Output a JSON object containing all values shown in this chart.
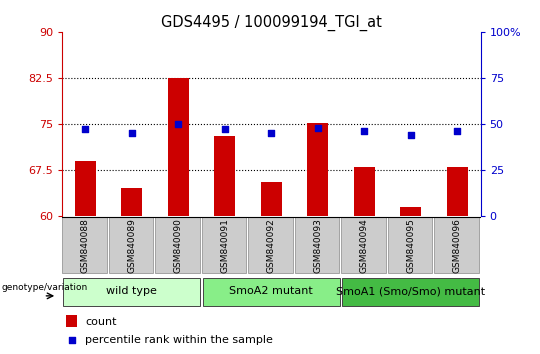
{
  "title": "GDS4495 / 100099194_TGI_at",
  "samples": [
    "GSM840088",
    "GSM840089",
    "GSM840090",
    "GSM840091",
    "GSM840092",
    "GSM840093",
    "GSM840094",
    "GSM840095",
    "GSM840096"
  ],
  "counts": [
    69.0,
    64.5,
    82.5,
    73.0,
    65.5,
    75.2,
    68.0,
    61.5,
    68.0
  ],
  "percentile": [
    47,
    45,
    50,
    47,
    45,
    48,
    46,
    44,
    46
  ],
  "ylim_left": [
    60,
    90
  ],
  "ylim_right": [
    0,
    100
  ],
  "yticks_left": [
    60,
    67.5,
    75,
    82.5,
    90
  ],
  "yticks_right": [
    0,
    25,
    50,
    75,
    100
  ],
  "groups": [
    {
      "label": "wild type",
      "start": 0,
      "end": 3,
      "color": "#ccffcc"
    },
    {
      "label": "SmoA2 mutant",
      "start": 3,
      "end": 6,
      "color": "#88ee88"
    },
    {
      "label": "SmoA1 (Smo/Smo) mutant",
      "start": 6,
      "end": 9,
      "color": "#44bb44"
    }
  ],
  "bar_color": "#cc0000",
  "dot_color": "#0000cc",
  "bar_width": 0.45,
  "dot_size": 22,
  "left_tick_color": "#cc0000",
  "right_tick_color": "#0000cc",
  "label_area_color": "#cccccc",
  "group_label_fontsize": 8,
  "sample_fontsize": 6.5,
  "legend_count_color": "#cc0000",
  "legend_pct_color": "#0000cc"
}
